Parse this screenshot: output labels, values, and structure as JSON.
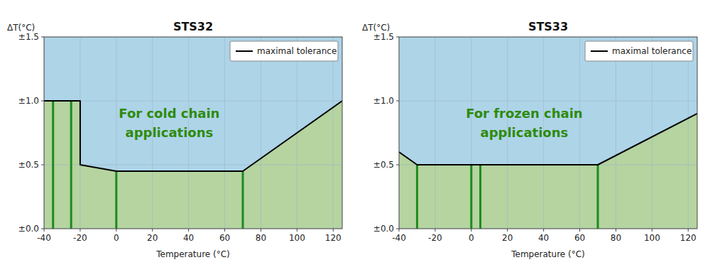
{
  "chart_data": [
    {
      "type": "line",
      "title": "STS32",
      "x_label": "Temperature (°C)",
      "y_label": "ΔT(°C)",
      "color": "#aed4e8",
      "xlim": [
        -40,
        125
      ],
      "ylim": [
        0.0,
        1.5
      ],
      "xticks": [
        -40,
        -20,
        0,
        20,
        40,
        60,
        80,
        100,
        120
      ],
      "yticks": [
        {
          "value": 0.0,
          "label": "±0.0"
        },
        {
          "value": 0.5,
          "label": "±0.5"
        },
        {
          "value": 1.0,
          "label": "±1.0"
        },
        {
          "value": 1.5,
          "label": "±1.5"
        }
      ],
      "grid": true,
      "legend": "upper right",
      "annotations": [
        {
          "text": "For cold chain\napplications",
          "color": "#2e8b0a"
        }
      ],
      "series": [
        {
          "type": "area",
          "color": "#b5d4a0",
          "x": [
            -40,
            -20,
            -20,
            0,
            70,
            125
          ],
          "values": [
            1.0,
            1.0,
            0.5,
            0.45,
            0.45,
            1.0
          ]
        },
        {
          "type": "bar",
          "color": "#1e8a1e",
          "x": [
            -35,
            -25,
            0,
            70
          ],
          "values": [
            1.0,
            1.0,
            0.45,
            0.45
          ]
        },
        {
          "type": "line",
          "name": "maximal tolerance",
          "color": "#000000",
          "x": [
            -40,
            -20,
            -20,
            0,
            70,
            125
          ],
          "values": [
            1.0,
            1.0,
            0.5,
            0.45,
            0.45,
            1.0
          ]
        }
      ]
    },
    {
      "type": "line",
      "title": "STS33",
      "x_label": "Temperature (°C)",
      "y_label": "ΔT(°C)",
      "color": "#aed4e8",
      "xlim": [
        -40,
        125
      ],
      "ylim": [
        0.0,
        1.5
      ],
      "xticks": [
        -40,
        -20,
        0,
        20,
        40,
        60,
        80,
        100,
        120
      ],
      "yticks": [
        {
          "value": 0.0,
          "label": "±0.0"
        },
        {
          "value": 0.5,
          "label": "±0.5"
        },
        {
          "value": 1.0,
          "label": "±1.0"
        },
        {
          "value": 1.5,
          "label": "±1.5"
        }
      ],
      "grid": true,
      "legend": "upper right",
      "annotations": [
        {
          "text": "For frozen chain\napplications",
          "color": "#2e8b0a"
        }
      ],
      "series": [
        {
          "type": "area",
          "color": "#b5d4a0",
          "x": [
            -40,
            -30,
            70,
            125
          ],
          "values": [
            0.6,
            0.5,
            0.5,
            0.9
          ]
        },
        {
          "type": "bar",
          "color": "#1e8a1e",
          "x": [
            -30,
            0,
            5,
            70
          ],
          "values": [
            0.5,
            0.5,
            0.5,
            0.5
          ]
        },
        {
          "type": "line",
          "name": "maximal tolerance",
          "color": "#000000",
          "x": [
            -40,
            -30,
            70,
            125
          ],
          "values": [
            0.6,
            0.5,
            0.5,
            0.9
          ]
        }
      ]
    }
  ]
}
